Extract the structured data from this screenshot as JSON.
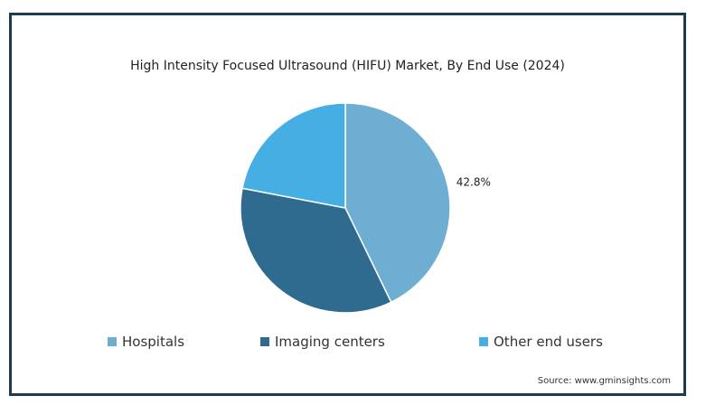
{
  "chart_data": {
    "type": "pie",
    "title": "High Intensity Focused Ultrasound (HIFU) Market, By End Use (2024)",
    "categories": [
      "Hospitals",
      "Imaging centers",
      "Other end users"
    ],
    "values": [
      42.8,
      35.2,
      22.0
    ],
    "colors": [
      "#6daed2",
      "#2e6b8e",
      "#45aee3"
    ],
    "data_labels": [
      "42.8%",
      "",
      ""
    ],
    "legend_position": "bottom"
  },
  "source": "Source: www.gminsights.com"
}
